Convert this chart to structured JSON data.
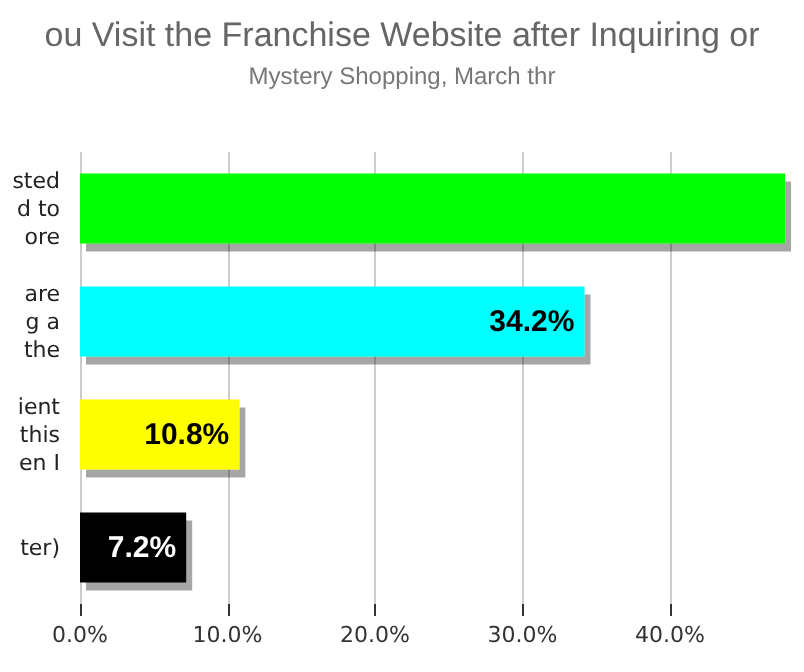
{
  "chart_data": {
    "type": "bar",
    "orientation": "horizontal",
    "title": "ou Visit the Franchise Website after Inquiring or",
    "subtitle": "Mystery Shopping, March thr",
    "categories": [
      "sted\nd to\nore",
      "are\ng a\nthe",
      "ient\nthis\nen I",
      "ter)"
    ],
    "values": [
      47.8,
      34.2,
      10.8,
      7.2
    ],
    "colors": [
      "#00ff00",
      "#00ffff",
      "#ffff00",
      "#000000"
    ],
    "value_labels": [
      null,
      "34.2%",
      "10.8%",
      "7.2%"
    ],
    "xlim": [
      0,
      48
    ],
    "xticks": [
      {
        "value": 0,
        "label": "0.0%"
      },
      {
        "value": 10,
        "label": "10.0%"
      },
      {
        "value": 20,
        "label": "20.0%"
      },
      {
        "value": 30,
        "label": "30.0%"
      },
      {
        "value": 40,
        "label": "40.0%"
      }
    ],
    "grid": "x"
  }
}
